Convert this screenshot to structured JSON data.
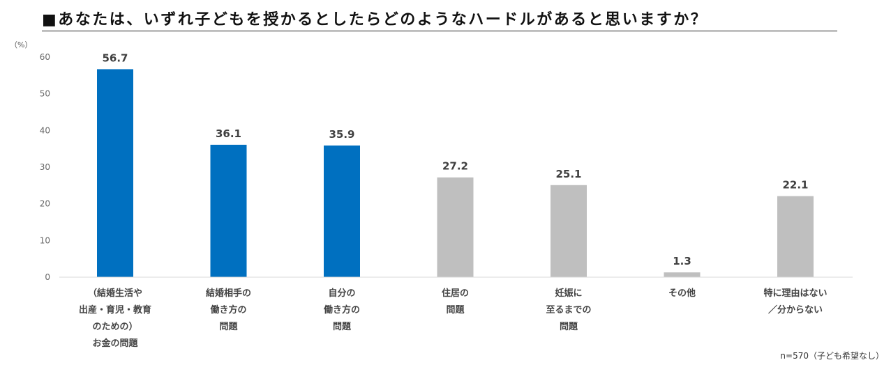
{
  "chart_data": {
    "type": "bar",
    "title": "■あなたは、いずれ子どもを授かるとしたらどのようなハードルがあると思いますか？",
    "ylabel": "（%）",
    "note": "n=570（子ども希望なし）",
    "ylim": [
      0,
      60
    ],
    "yticks": [
      "0",
      "10",
      "20",
      "30",
      "40",
      "50",
      "60"
    ],
    "grid": false,
    "legend": "none",
    "categories": [
      [
        "（結婚生活や",
        "出産・育児・教育",
        "のための）",
        "お金の問題"
      ],
      [
        "結婚相手の",
        "働き方の",
        "問題"
      ],
      [
        "自分の",
        "働き方の",
        "問題"
      ],
      [
        "住居の",
        "問題"
      ],
      [
        "妊娠に",
        "至るまでの",
        "問題"
      ],
      [
        "その他"
      ],
      [
        "特に理由はない",
        "／分からない"
      ]
    ],
    "values": [
      56.7,
      36.1,
      35.9,
      27.2,
      25.1,
      1.3,
      22.1
    ],
    "value_labels": [
      "56.7",
      "36.1",
      "35.9",
      "27.2",
      "25.1",
      "1.3",
      "22.1"
    ],
    "bar_colors": [
      "#0070C0",
      "#0070C0",
      "#0070C0",
      "#BFBFBF",
      "#BFBFBF",
      "#BFBFBF",
      "#BFBFBF"
    ],
    "axis_color": "#D9D9D9"
  }
}
